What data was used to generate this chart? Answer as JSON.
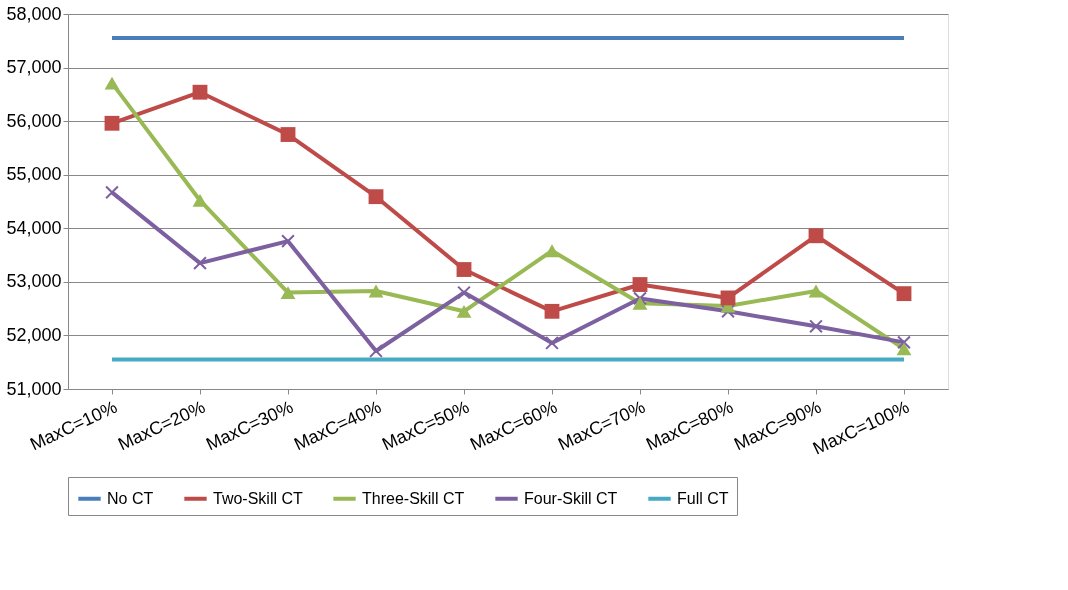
{
  "chart_data": {
    "type": "line",
    "categories": [
      "MaxC=10%",
      "MaxC=20%",
      "MaxC=30%",
      "MaxC=40%",
      "MaxC=50%",
      "MaxC=60%",
      "MaxC=70%",
      "MaxC=80%",
      "MaxC=90%",
      "MaxC=100%"
    ],
    "series": [
      {
        "name": "No CT",
        "color": "#4a7ebb",
        "marker": "none",
        "values": [
          57550,
          57550,
          57550,
          57550,
          57550,
          57550,
          57550,
          57550,
          57550,
          57550
        ]
      },
      {
        "name": "Two-Skill CT",
        "color": "#be4b48",
        "marker": "square",
        "values": [
          55960,
          56540,
          55750,
          54590,
          53230,
          52450,
          52950,
          52700,
          53860,
          52780
        ]
      },
      {
        "name": "Three-Skill CT",
        "color": "#98b954",
        "marker": "triangle",
        "values": [
          56710,
          54520,
          52800,
          52830,
          52450,
          53580,
          52600,
          52550,
          52830,
          51750
        ]
      },
      {
        "name": "Four-Skill CT",
        "color": "#7d60a0",
        "marker": "cross",
        "values": [
          54670,
          53350,
          53760,
          51710,
          52800,
          51860,
          52690,
          52450,
          52170,
          51870
        ]
      },
      {
        "name": "Full CT",
        "color": "#46aac5",
        "marker": "none",
        "values": [
          51550,
          51550,
          51550,
          51550,
          51550,
          51550,
          51550,
          51550,
          51550,
          51550
        ]
      }
    ],
    "ylim": [
      51000,
      58000
    ],
    "yticks": [
      {
        "value": 51000,
        "label": "51,000"
      },
      {
        "value": 52000,
        "label": "52,000"
      },
      {
        "value": 53000,
        "label": "53,000"
      },
      {
        "value": 54000,
        "label": "54,000"
      },
      {
        "value": 55000,
        "label": "55,000"
      },
      {
        "value": 56000,
        "label": "56,000"
      },
      {
        "value": 57000,
        "label": "57,000"
      },
      {
        "value": 58000,
        "label": "58,000"
      }
    ],
    "grid": "y",
    "legend": "bottom",
    "line_style": "solid"
  }
}
